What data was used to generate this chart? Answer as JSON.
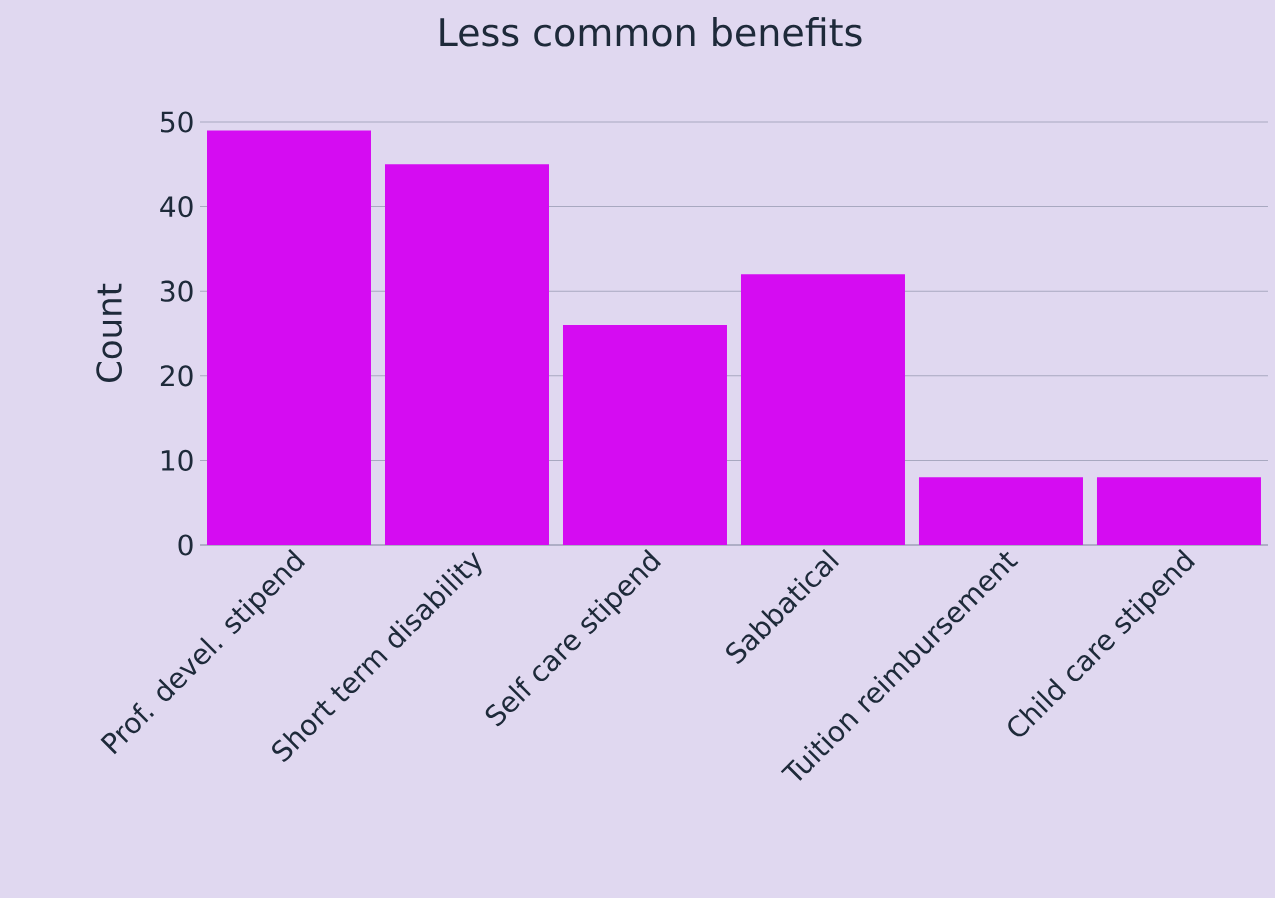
{
  "chart_data": {
    "type": "bar",
    "title": "Less common benefits",
    "ylabel": "Count",
    "categories": [
      "Prof. devel. stipend",
      "Short term disability",
      "Self care stipend",
      "Sabbatical",
      "Tuition reimbursement",
      "Child care stipend"
    ],
    "values": [
      49,
      45,
      26,
      32,
      8,
      8
    ],
    "color": "#d50cf2",
    "ylim": [
      0,
      50
    ],
    "yticks": [
      0,
      10,
      20,
      30,
      40,
      50
    ],
    "grid": "y"
  }
}
